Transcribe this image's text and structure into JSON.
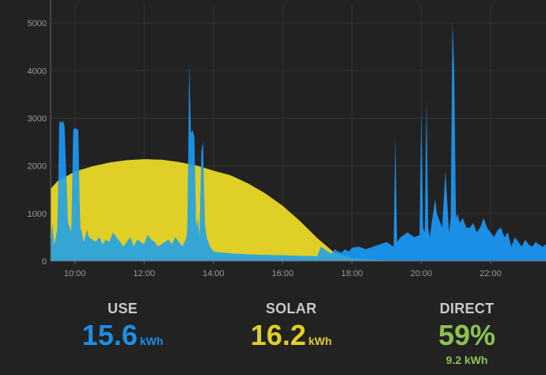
{
  "colors": {
    "background": "#222222",
    "use": "#1b8fe6",
    "solar": "#dfcf26",
    "overlap": "#35a5d4",
    "direct": "#8cc152",
    "grid": "#333333",
    "axis": "#666666",
    "tick": "#9a9a9a"
  },
  "chart_data": {
    "type": "area",
    "x_unit": "time of day (hours)",
    "xlim": [
      9.3,
      23.6
    ],
    "ylim": [
      0,
      5400
    ],
    "x_ticks": [
      10,
      12,
      14,
      16,
      18,
      20,
      22
    ],
    "x_tick_labels": [
      "10:00",
      "12:00",
      "14:00",
      "16:00",
      "18:00",
      "20:00",
      "22:00"
    ],
    "y_ticks": [
      0,
      1000,
      2000,
      3000,
      4000,
      5000
    ],
    "y_tick_labels": [
      "0",
      "1000",
      "2000",
      "3000",
      "4000",
      "5000"
    ],
    "grid": true,
    "series": [
      {
        "key": "use",
        "x": [
          9.3,
          9.35,
          9.4,
          9.5,
          9.55,
          9.6,
          9.65,
          9.7,
          9.8,
          9.9,
          9.95,
          10.0,
          10.1,
          10.15,
          10.2,
          10.25,
          10.3,
          10.35,
          10.4,
          10.5,
          10.6,
          10.7,
          10.8,
          10.9,
          11.0,
          11.1,
          11.2,
          11.3,
          11.4,
          11.5,
          11.6,
          11.7,
          11.8,
          11.9,
          12.0,
          12.1,
          12.2,
          12.3,
          12.4,
          12.5,
          12.6,
          12.7,
          12.8,
          12.9,
          13.0,
          13.1,
          13.2,
          13.25,
          13.3,
          13.35,
          13.4,
          13.45,
          13.5,
          13.55,
          13.6,
          13.65,
          13.7,
          13.75,
          13.8,
          13.9,
          14.0,
          14.2,
          14.5,
          15.0,
          15.5,
          16.0,
          16.5,
          17.0,
          17.1,
          17.2,
          17.3,
          17.4,
          17.5,
          17.6,
          17.7,
          17.8,
          17.9,
          18.0,
          18.2,
          18.4,
          18.6,
          18.8,
          19.0,
          19.2,
          19.25,
          19.3,
          19.4,
          19.6,
          19.8,
          19.95,
          20.0,
          20.05,
          20.1,
          20.15,
          20.2,
          20.25,
          20.3,
          20.4,
          20.45,
          20.5,
          20.6,
          20.7,
          20.8,
          20.85,
          20.9,
          20.95,
          21.0,
          21.05,
          21.1,
          21.2,
          21.3,
          21.4,
          21.5,
          21.6,
          21.7,
          21.8,
          21.9,
          22.0,
          22.1,
          22.2,
          22.3,
          22.4,
          22.5,
          22.6,
          22.7,
          22.8,
          22.9,
          23.0,
          23.1,
          23.2,
          23.3,
          23.4,
          23.5,
          23.6
        ],
        "values": [
          250,
          800,
          300,
          700,
          2950,
          2900,
          2950,
          2850,
          800,
          600,
          2750,
          2800,
          2750,
          700,
          600,
          400,
          500,
          650,
          500,
          450,
          400,
          500,
          350,
          450,
          400,
          600,
          500,
          400,
          300,
          400,
          500,
          300,
          450,
          400,
          350,
          550,
          450,
          400,
          300,
          350,
          400,
          450,
          350,
          500,
          400,
          300,
          450,
          600,
          4150,
          2700,
          2750,
          2600,
          600,
          900,
          400,
          2300,
          2500,
          800,
          500,
          300,
          200,
          180,
          160,
          140,
          130,
          120,
          110,
          100,
          300,
          250,
          200,
          150,
          250,
          200,
          180,
          250,
          200,
          280,
          300,
          250,
          300,
          350,
          400,
          300,
          2600,
          400,
          500,
          600,
          500,
          550,
          3200,
          700,
          600,
          3400,
          700,
          500,
          800,
          1300,
          1000,
          900,
          700,
          1900,
          600,
          900,
          5050,
          4000,
          900,
          1000,
          800,
          900,
          700,
          700,
          800,
          600,
          700,
          900,
          700,
          600,
          500,
          650,
          700,
          500,
          600,
          300,
          500,
          400,
          300,
          450,
          350,
          300,
          400,
          350,
          300,
          350
        ]
      },
      {
        "key": "solar",
        "x": [
          9.3,
          9.5,
          10.0,
          10.5,
          11.0,
          11.5,
          12.0,
          12.5,
          13.0,
          13.5,
          14.0,
          14.5,
          15.0,
          15.5,
          16.0,
          16.5,
          17.0,
          17.5,
          18.0,
          18.5,
          19.0,
          19.5,
          19.8
        ],
        "values": [
          1520,
          1680,
          1880,
          1990,
          2070,
          2120,
          2140,
          2130,
          2080,
          2010,
          1900,
          1800,
          1630,
          1420,
          1160,
          840,
          480,
          170,
          60,
          30,
          15,
          5,
          0
        ]
      }
    ]
  },
  "stats": {
    "use": {
      "label": "USE",
      "value": "15.6",
      "unit": "kWh"
    },
    "solar": {
      "label": "SOLAR",
      "value": "16.2",
      "unit": "kWh"
    },
    "direct": {
      "label": "DIRECT",
      "value": "59%",
      "sub": "9.2 kWh"
    }
  }
}
